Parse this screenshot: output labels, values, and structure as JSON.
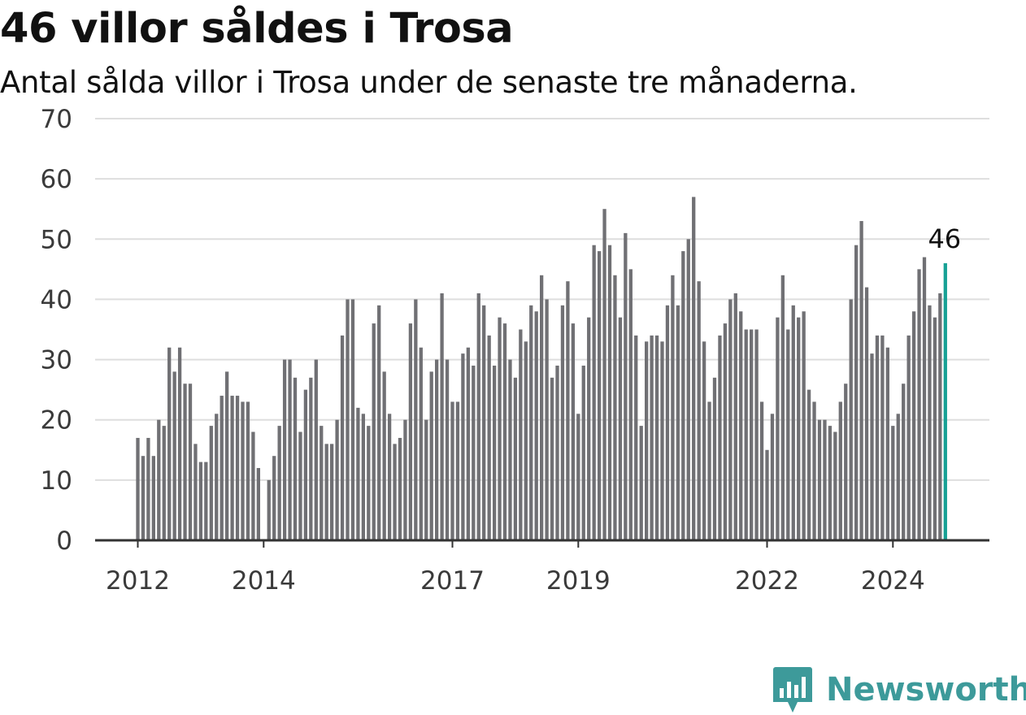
{
  "title": "46 villor såldes i Trosa",
  "subtitle": "Antal sålda villor i Trosa under de senaste tre månaderna.",
  "brand": {
    "name": "Newsworthy",
    "color": "#3d9a9a"
  },
  "colors": {
    "bar": "#707074",
    "highlight": "#17a195",
    "grid": "#dedede",
    "axis": "#333333"
  },
  "chart_data": {
    "type": "bar",
    "ylim": [
      0,
      70
    ],
    "yticks": [
      "0",
      "10",
      "20",
      "30",
      "40",
      "50",
      "60",
      "70"
    ],
    "grid": true,
    "xtick_labels": [
      {
        "label": "2012",
        "index": 0
      },
      {
        "label": "2014",
        "index": 24
      },
      {
        "label": "2017",
        "index": 60
      },
      {
        "label": "2019",
        "index": 84
      },
      {
        "label": "2022",
        "index": 120
      },
      {
        "label": "2024",
        "index": 144
      }
    ],
    "highlight": {
      "label": "46",
      "value": 46
    },
    "values": [
      17,
      14,
      17,
      14,
      20,
      19,
      32,
      28,
      32,
      26,
      26,
      16,
      13,
      13,
      19,
      21,
      24,
      28,
      24,
      24,
      23,
      23,
      18,
      12,
      0,
      10,
      14,
      19,
      30,
      30,
      27,
      18,
      25,
      27,
      30,
      19,
      16,
      16,
      20,
      34,
      40,
      40,
      22,
      21,
      19,
      36,
      39,
      28,
      21,
      16,
      17,
      20,
      36,
      40,
      32,
      20,
      28,
      30,
      41,
      30,
      23,
      23,
      31,
      32,
      29,
      41,
      39,
      34,
      29,
      37,
      36,
      30,
      27,
      35,
      33,
      39,
      38,
      44,
      40,
      27,
      29,
      39,
      43,
      36,
      21,
      29,
      37,
      49,
      48,
      55,
      49,
      44,
      37,
      51,
      45,
      34,
      19,
      33,
      34,
      34,
      33,
      39,
      44,
      39,
      48,
      50,
      57,
      43,
      33,
      23,
      27,
      34,
      36,
      40,
      41,
      38,
      35,
      35,
      35,
      23,
      15,
      21,
      37,
      44,
      35,
      39,
      37,
      38,
      25,
      23,
      20,
      20,
      19,
      18,
      23,
      26,
      40,
      49,
      53,
      42,
      31,
      34,
      34,
      32,
      19,
      21,
      26,
      34,
      38,
      45,
      47,
      39,
      37,
      41,
      46
    ]
  }
}
